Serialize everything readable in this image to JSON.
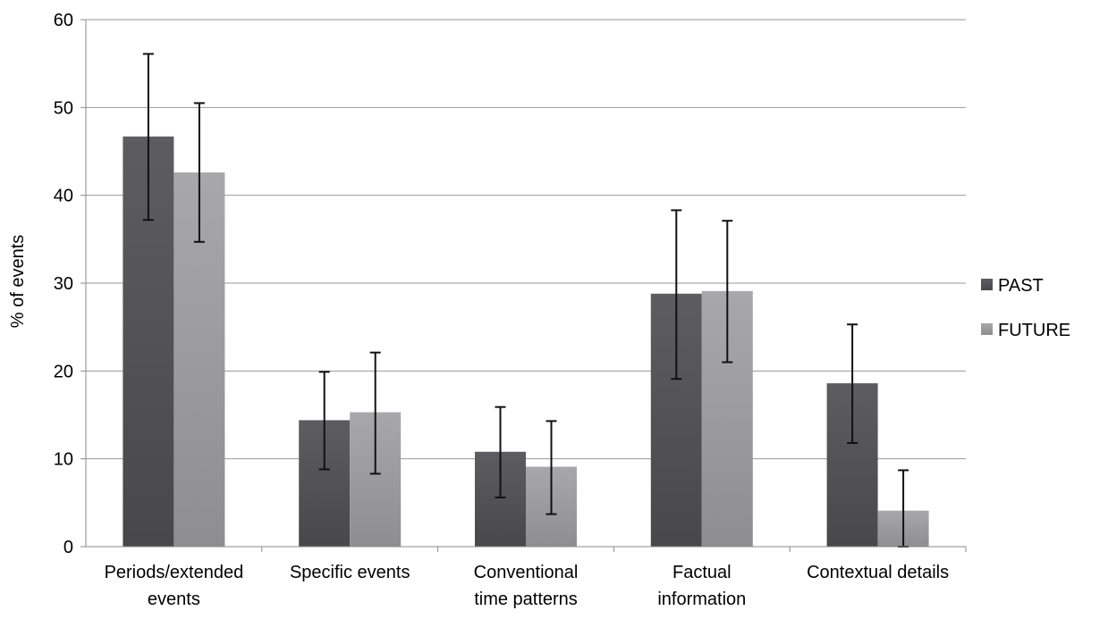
{
  "chart_data": {
    "type": "bar",
    "title": "",
    "xlabel": "",
    "ylabel": "% of events",
    "ylim": [
      0,
      60
    ],
    "yticks": [
      0,
      10,
      20,
      30,
      40,
      50,
      60
    ],
    "grid": true,
    "legend_position": "right",
    "categories": [
      [
        "Periods/extended",
        "events"
      ],
      [
        "Specific events"
      ],
      [
        "Conventional",
        "time patterns"
      ],
      [
        "Factual",
        "information"
      ],
      [
        "Contextual details"
      ]
    ],
    "series": [
      {
        "name": "PAST",
        "color": "#5a5a5e",
        "values": [
          46.7,
          14.4,
          10.8,
          28.8,
          18.6
        ],
        "error_low": [
          37.2,
          8.8,
          5.6,
          19.1,
          11.8
        ],
        "error_high": [
          56.1,
          19.9,
          15.9,
          38.3,
          25.3
        ]
      },
      {
        "name": "FUTURE",
        "color": "#a2a2a4",
        "values": [
          42.6,
          15.3,
          9.1,
          29.1,
          4.1
        ],
        "error_low": [
          34.7,
          8.3,
          3.7,
          21.0,
          0.0
        ],
        "error_high": [
          50.5,
          22.1,
          14.3,
          37.1,
          8.7
        ]
      }
    ]
  }
}
